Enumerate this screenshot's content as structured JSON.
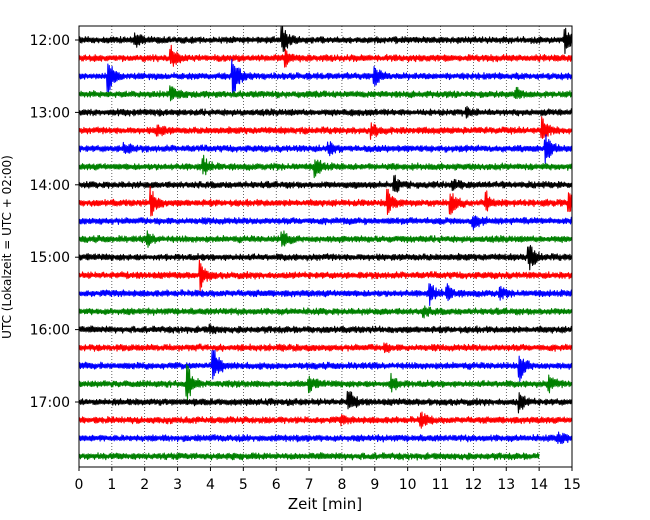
{
  "chart_data": {
    "type": "line",
    "title": "",
    "xlabel": "Zeit  [min]",
    "ylabel": "UTC (Lokalzeit = UTC + 02:00)",
    "xlim": [
      0,
      15
    ],
    "x_ticks": [
      "0",
      "1",
      "2",
      "3",
      "4",
      "5",
      "6",
      "7",
      "8",
      "9",
      "10",
      "11",
      "12",
      "13",
      "14",
      "15"
    ],
    "y_ticks": [
      {
        "label": "12:00",
        "trace": 0
      },
      {
        "label": "13:00",
        "trace": 4
      },
      {
        "label": "14:00",
        "trace": 8
      },
      {
        "label": "15:00",
        "trace": 12
      },
      {
        "label": "16:00",
        "trace": 16
      },
      {
        "label": "17:00",
        "trace": 20
      }
    ],
    "grid_x": true,
    "trace_interval_minutes": 15,
    "color_cycle": [
      "#000000",
      "#ff0000",
      "#0000ff",
      "#008000"
    ],
    "series": [
      {
        "start": "12:00",
        "events": [
          {
            "t": 1.7,
            "a": 8
          },
          {
            "t": 6.2,
            "a": 12
          },
          {
            "t": 14.8,
            "a": 11
          }
        ]
      },
      {
        "start": "12:15",
        "events": [
          {
            "t": 2.8,
            "a": 11
          },
          {
            "t": 6.3,
            "a": 9
          }
        ]
      },
      {
        "start": "12:30",
        "events": [
          {
            "t": 0.9,
            "a": 14
          },
          {
            "t": 4.7,
            "a": 20
          },
          {
            "t": 9.0,
            "a": 8
          }
        ]
      },
      {
        "start": "12:45",
        "events": [
          {
            "t": 2.8,
            "a": 8
          },
          {
            "t": 13.3,
            "a": 5
          }
        ]
      },
      {
        "start": "13:00",
        "events": [
          {
            "t": 11.8,
            "a": 3
          }
        ]
      },
      {
        "start": "13:15",
        "events": [
          {
            "t": 2.4,
            "a": 6
          },
          {
            "t": 8.9,
            "a": 8
          },
          {
            "t": 14.1,
            "a": 12
          }
        ]
      },
      {
        "start": "13:30",
        "events": [
          {
            "t": 1.4,
            "a": 5
          },
          {
            "t": 7.6,
            "a": 6
          },
          {
            "t": 14.2,
            "a": 14
          }
        ]
      },
      {
        "start": "13:45",
        "events": [
          {
            "t": 3.8,
            "a": 9
          },
          {
            "t": 7.2,
            "a": 9
          }
        ]
      },
      {
        "start": "14:00",
        "events": [
          {
            "t": 9.6,
            "a": 8
          },
          {
            "t": 11.4,
            "a": 5
          }
        ]
      },
      {
        "start": "14:15",
        "events": [
          {
            "t": 2.2,
            "a": 14
          },
          {
            "t": 9.4,
            "a": 11
          },
          {
            "t": 11.3,
            "a": 12
          },
          {
            "t": 12.4,
            "a": 9
          },
          {
            "t": 14.9,
            "a": 10
          }
        ]
      },
      {
        "start": "14:30",
        "events": [
          {
            "t": 12.0,
            "a": 7
          }
        ]
      },
      {
        "start": "14:45",
        "events": [
          {
            "t": 2.1,
            "a": 6
          },
          {
            "t": 6.2,
            "a": 8
          }
        ]
      },
      {
        "start": "15:00",
        "events": [
          {
            "t": 13.7,
            "a": 12
          }
        ]
      },
      {
        "start": "15:15",
        "events": [
          {
            "t": 3.7,
            "a": 13
          }
        ]
      },
      {
        "start": "15:30",
        "events": [
          {
            "t": 10.7,
            "a": 9
          },
          {
            "t": 11.2,
            "a": 7
          },
          {
            "t": 12.8,
            "a": 5
          }
        ]
      },
      {
        "start": "15:45",
        "events": [
          {
            "t": 10.5,
            "a": 4
          }
        ]
      },
      {
        "start": "16:00",
        "events": [
          {
            "t": 4.0,
            "a": 3
          }
        ]
      },
      {
        "start": "16:15",
        "events": [
          {
            "t": 9.3,
            "a": 3
          }
        ]
      },
      {
        "start": "16:30",
        "events": [
          {
            "t": 4.1,
            "a": 16
          },
          {
            "t": 13.4,
            "a": 14
          }
        ]
      },
      {
        "start": "16:45",
        "events": [
          {
            "t": 3.3,
            "a": 18
          },
          {
            "t": 7.0,
            "a": 7
          },
          {
            "t": 9.5,
            "a": 8
          },
          {
            "t": 14.3,
            "a": 8
          }
        ]
      },
      {
        "start": "17:00",
        "events": [
          {
            "t": 8.2,
            "a": 12
          },
          {
            "t": 13.4,
            "a": 9
          }
        ]
      },
      {
        "start": "17:15",
        "events": [
          {
            "t": 8.0,
            "a": 3
          },
          {
            "t": 10.4,
            "a": 8
          }
        ]
      },
      {
        "start": "17:30",
        "events": [
          {
            "t": 14.6,
            "a": 6
          }
        ]
      },
      {
        "start": "17:45",
        "end_minute": 14.0,
        "events": []
      }
    ]
  }
}
